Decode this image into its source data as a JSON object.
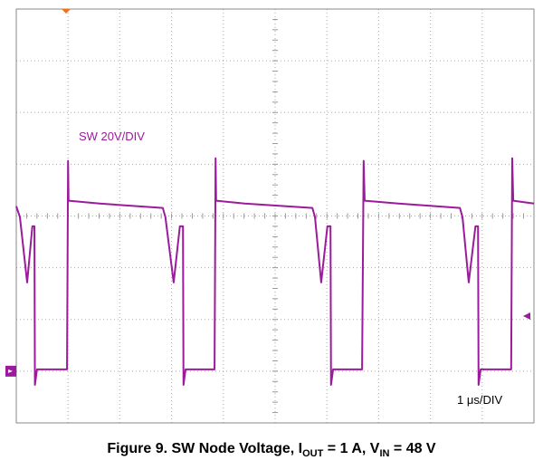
{
  "chart_data": {
    "type": "line",
    "channel_label": "SW 20V/DIV",
    "timebase_label": "1 μs/DIV",
    "caption": [
      "Figure 9. SW Node Voltage, I",
      "OUT",
      " = 1 A, V",
      "IN",
      " = 48 V"
    ],
    "color": "#9c1a9c",
    "xlim": [
      0,
      10
    ],
    "xticks": [
      0,
      1,
      2,
      3,
      4,
      5,
      6,
      7,
      8,
      9,
      10
    ],
    "ylim": [
      -20,
      140
    ],
    "yticks": [
      -20,
      0,
      20,
      40,
      60,
      80,
      100,
      120,
      140
    ],
    "grid": true,
    "x": [
      0.0,
      0.07,
      0.21,
      0.31,
      0.35,
      0.36,
      0.4,
      0.98,
      1.0,
      1.01,
      1.61,
      2.83,
      2.88,
      3.04,
      3.16,
      3.22,
      3.23,
      3.27,
      3.83,
      3.85,
      3.86,
      4.41,
      5.72,
      5.77,
      5.89,
      6.01,
      6.07,
      6.08,
      6.12,
      6.68,
      6.71,
      6.73,
      7.38,
      8.57,
      8.62,
      8.74,
      8.87,
      8.92,
      8.93,
      8.97,
      9.56,
      9.58,
      9.6,
      10.0
    ],
    "values": [
      63.8,
      59.6,
      34.3,
      56.0,
      56.0,
      -5.3,
      0.7,
      0.7,
      81.3,
      65.9,
      64.8,
      63.1,
      59.6,
      34.3,
      56.0,
      56.0,
      -5.3,
      0.7,
      0.7,
      82.3,
      65.9,
      64.8,
      63.1,
      59.6,
      34.3,
      56.0,
      56.0,
      -5.3,
      0.7,
      0.7,
      81.3,
      65.9,
      64.8,
      63.1,
      59.6,
      34.3,
      56.0,
      56.0,
      -5.3,
      0.7,
      0.7,
      82.3,
      65.9,
      64.8
    ]
  }
}
